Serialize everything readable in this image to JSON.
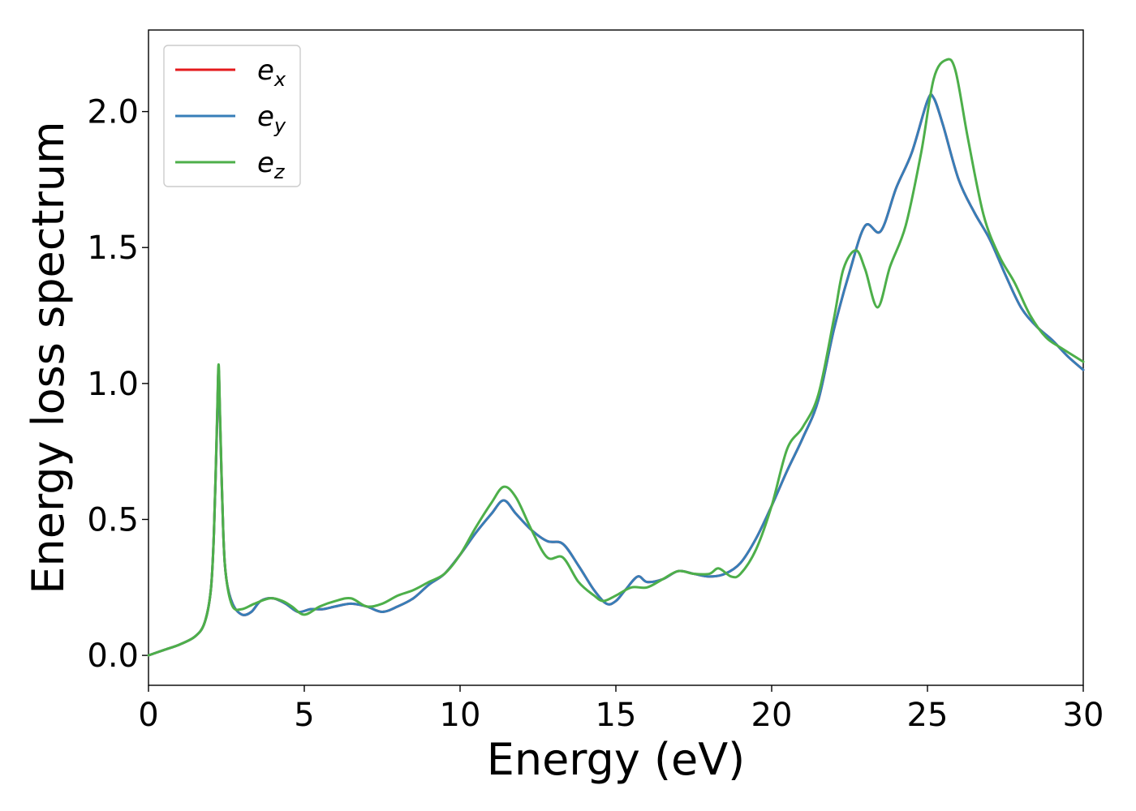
{
  "chart_data": {
    "type": "line",
    "xlabel": "Energy (eV)",
    "ylabel": "Energy loss spectrum",
    "xlim": [
      0,
      30
    ],
    "ylim": [
      -0.11,
      2.3
    ],
    "xticks": [
      0,
      5,
      10,
      15,
      20,
      25,
      30
    ],
    "xtick_labels": [
      "0",
      "5",
      "10",
      "15",
      "20",
      "25",
      "30"
    ],
    "yticks": [
      0.0,
      0.5,
      1.0,
      1.5,
      2.0
    ],
    "ytick_labels": [
      "0.0",
      "0.5",
      "1.0",
      "1.5",
      "2.0"
    ],
    "grid": false,
    "legend_position": "top-left",
    "series": [
      {
        "name": "e_x",
        "label_main": "e",
        "label_sub": "x",
        "color": "#e41a1c",
        "x": [
          0,
          0.5,
          1.0,
          1.5,
          1.8,
          2.0,
          2.1,
          2.2,
          2.25,
          2.3,
          2.4,
          2.5,
          2.7,
          3.0,
          3.3,
          3.6,
          4.0,
          4.4,
          4.8,
          5.2,
          5.6,
          6.0,
          6.5,
          7.0,
          7.5,
          8.0,
          8.5,
          9.0,
          9.5,
          10.0,
          10.5,
          11.0,
          11.4,
          11.8,
          12.3,
          12.8,
          13.3,
          13.8,
          14.3,
          14.7,
          15.0,
          15.3,
          15.7,
          16.0,
          16.5,
          17.0,
          17.5,
          18.0,
          18.5,
          19.0,
          19.5,
          20.0,
          20.5,
          21.0,
          21.5,
          22.0,
          22.5,
          23.0,
          23.5,
          24.0,
          24.5,
          25.0,
          25.2,
          25.5,
          26.0,
          26.5,
          27.0,
          27.5,
          28.0,
          28.5,
          29.0,
          29.5,
          30.0
        ],
        "y": [
          0.0,
          0.02,
          0.04,
          0.07,
          0.12,
          0.24,
          0.45,
          0.85,
          1.05,
          0.85,
          0.45,
          0.28,
          0.19,
          0.15,
          0.16,
          0.2,
          0.21,
          0.19,
          0.16,
          0.17,
          0.17,
          0.18,
          0.19,
          0.18,
          0.16,
          0.18,
          0.21,
          0.26,
          0.3,
          0.37,
          0.45,
          0.52,
          0.57,
          0.52,
          0.46,
          0.42,
          0.41,
          0.33,
          0.24,
          0.19,
          0.2,
          0.24,
          0.29,
          0.27,
          0.28,
          0.31,
          0.3,
          0.29,
          0.3,
          0.34,
          0.43,
          0.55,
          0.68,
          0.8,
          0.94,
          1.2,
          1.41,
          1.58,
          1.56,
          1.72,
          1.85,
          2.04,
          2.05,
          1.95,
          1.75,
          1.63,
          1.53,
          1.4,
          1.28,
          1.21,
          1.16,
          1.1,
          1.05
        ]
      },
      {
        "name": "e_y",
        "label_main": "e",
        "label_sub": "y",
        "color": "#377eb8",
        "x": [
          0,
          0.5,
          1.0,
          1.5,
          1.8,
          2.0,
          2.1,
          2.2,
          2.25,
          2.3,
          2.4,
          2.5,
          2.7,
          3.0,
          3.3,
          3.6,
          4.0,
          4.4,
          4.8,
          5.2,
          5.6,
          6.0,
          6.5,
          7.0,
          7.5,
          8.0,
          8.5,
          9.0,
          9.5,
          10.0,
          10.5,
          11.0,
          11.4,
          11.8,
          12.3,
          12.8,
          13.3,
          13.8,
          14.3,
          14.7,
          15.0,
          15.3,
          15.7,
          16.0,
          16.5,
          17.0,
          17.5,
          18.0,
          18.5,
          19.0,
          19.5,
          20.0,
          20.5,
          21.0,
          21.5,
          22.0,
          22.5,
          23.0,
          23.5,
          24.0,
          24.5,
          25.0,
          25.2,
          25.5,
          26.0,
          26.5,
          27.0,
          27.5,
          28.0,
          28.5,
          29.0,
          29.5,
          30.0
        ],
        "y": [
          0.0,
          0.02,
          0.04,
          0.07,
          0.12,
          0.24,
          0.45,
          0.85,
          1.05,
          0.85,
          0.45,
          0.28,
          0.19,
          0.15,
          0.16,
          0.2,
          0.21,
          0.19,
          0.16,
          0.17,
          0.17,
          0.18,
          0.19,
          0.18,
          0.16,
          0.18,
          0.21,
          0.26,
          0.3,
          0.37,
          0.45,
          0.52,
          0.57,
          0.52,
          0.46,
          0.42,
          0.41,
          0.33,
          0.24,
          0.19,
          0.2,
          0.24,
          0.29,
          0.27,
          0.28,
          0.31,
          0.3,
          0.29,
          0.3,
          0.34,
          0.43,
          0.55,
          0.68,
          0.8,
          0.94,
          1.2,
          1.41,
          1.58,
          1.56,
          1.72,
          1.85,
          2.04,
          2.05,
          1.95,
          1.75,
          1.63,
          1.53,
          1.4,
          1.28,
          1.21,
          1.16,
          1.1,
          1.05
        ]
      },
      {
        "name": "e_z",
        "label_main": "e",
        "label_sub": "z",
        "color": "#4daf4a",
        "x": [
          0,
          0.5,
          1.0,
          1.5,
          1.8,
          2.0,
          2.1,
          2.2,
          2.25,
          2.3,
          2.4,
          2.5,
          2.7,
          3.0,
          3.4,
          3.9,
          4.3,
          4.6,
          5.0,
          5.5,
          6.0,
          6.5,
          7.0,
          7.5,
          8.0,
          8.5,
          9.0,
          9.5,
          10.0,
          10.5,
          11.0,
          11.4,
          11.8,
          12.3,
          12.8,
          13.3,
          13.8,
          14.3,
          14.6,
          15.0,
          15.5,
          16.0,
          16.5,
          17.0,
          17.5,
          18.0,
          18.3,
          18.7,
          19.0,
          19.5,
          20.0,
          20.5,
          21.0,
          21.5,
          22.0,
          22.3,
          22.7,
          23.0,
          23.4,
          23.8,
          24.3,
          24.8,
          25.2,
          25.6,
          25.9,
          26.3,
          26.8,
          27.3,
          27.8,
          28.3,
          28.8,
          29.3,
          30.0
        ],
        "y": [
          0.0,
          0.02,
          0.04,
          0.07,
          0.12,
          0.24,
          0.45,
          0.87,
          1.07,
          0.87,
          0.45,
          0.28,
          0.18,
          0.17,
          0.19,
          0.21,
          0.2,
          0.18,
          0.15,
          0.18,
          0.2,
          0.21,
          0.18,
          0.19,
          0.22,
          0.24,
          0.27,
          0.3,
          0.37,
          0.47,
          0.56,
          0.62,
          0.58,
          0.46,
          0.36,
          0.36,
          0.27,
          0.22,
          0.2,
          0.22,
          0.25,
          0.25,
          0.28,
          0.31,
          0.3,
          0.3,
          0.32,
          0.29,
          0.3,
          0.39,
          0.55,
          0.76,
          0.84,
          0.96,
          1.24,
          1.42,
          1.49,
          1.42,
          1.28,
          1.43,
          1.58,
          1.85,
          2.12,
          2.19,
          2.15,
          1.9,
          1.62,
          1.47,
          1.37,
          1.25,
          1.17,
          1.13,
          1.08
        ]
      }
    ]
  }
}
